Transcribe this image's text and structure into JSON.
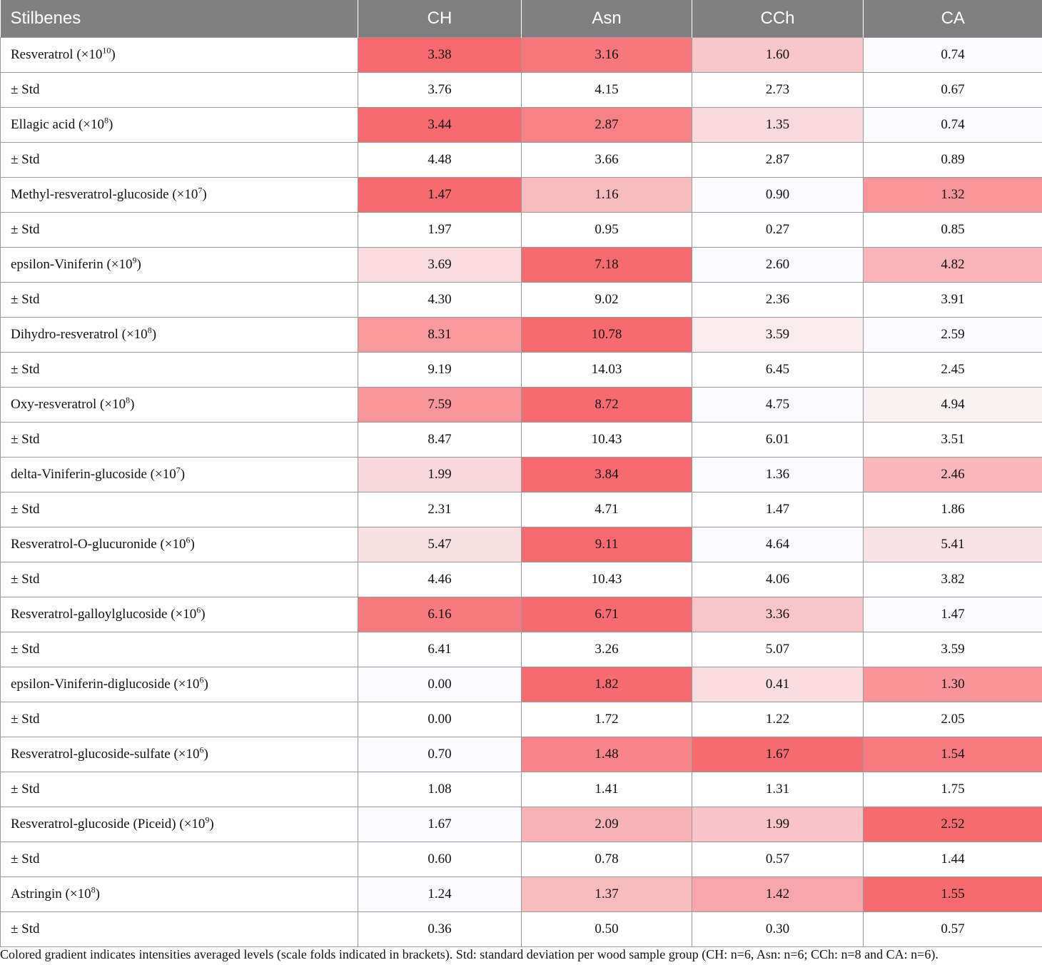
{
  "table": {
    "headers": [
      "Stilbenes",
      "CH",
      "Asn",
      "CCh",
      "CA"
    ],
    "std_label": "± Std",
    "rows": [
      {
        "name": "Resveratrol (×10",
        "name_sup": "10",
        "name_end": ")",
        "values": [
          "3.38",
          "3.16",
          "1.60",
          "0.74"
        ],
        "std": [
          "3.76",
          "4.15",
          "2.73",
          "0.67"
        ],
        "colors": [
          "#f76b70",
          "#f7777c",
          "#f8c7ca",
          "#fafaff"
        ]
      },
      {
        "name": "Ellagic acid (×10",
        "name_sup": "8",
        "name_end": ")",
        "values": [
          "3.44",
          "2.87",
          "1.35",
          "0.74"
        ],
        "std": [
          "4.48",
          "3.66",
          "2.87",
          "0.89"
        ],
        "colors": [
          "#f76b70",
          "#f78286",
          "#f9d9dc",
          "#fafaff"
        ]
      },
      {
        "name": "Methyl-resveratrol-glucoside (×10",
        "name_sup": "7",
        "name_end": ")",
        "values": [
          "1.47",
          "1.16",
          "0.90",
          "1.32"
        ],
        "std": [
          "1.97",
          "0.95",
          "0.27",
          "0.85"
        ],
        "colors": [
          "#f76b70",
          "#f8bcbf",
          "#fafaff",
          "#f8969a"
        ]
      },
      {
        "name": "epsilon-Viniferin (×10",
        "name_sup": "9",
        "name_end": ")",
        "values": [
          "3.69",
          "7.18",
          "2.60",
          "4.82"
        ],
        "std": [
          "4.30",
          "9.02",
          "2.36",
          "3.91"
        ],
        "colors": [
          "#f9dadd",
          "#f76b70",
          "#fafaff",
          "#f8b4b8"
        ]
      },
      {
        "name": "Dihydro-resveratrol (×10",
        "name_sup": "8",
        "name_end": ")",
        "values": [
          "8.31",
          "10.78",
          "3.59",
          "2.59"
        ],
        "std": [
          "9.19",
          "14.03",
          "6.45",
          "2.45"
        ],
        "colors": [
          "#f89a9e",
          "#f76b70",
          "#faecee",
          "#fafaff"
        ]
      },
      {
        "name": "Oxy-resveratrol (×10",
        "name_sup": "8",
        "name_end": ")",
        "values": [
          "7.59",
          "8.72",
          "4.75",
          "4.94"
        ],
        "std": [
          "8.47",
          "10.43",
          "6.01",
          "3.51"
        ],
        "colors": [
          "#f8979b",
          "#f76b70",
          "#fafaff",
          "#faf1f3"
        ]
      },
      {
        "name": "delta-Viniferin-glucoside (×10",
        "name_sup": "7",
        "name_end": ")",
        "values": [
          "1.99",
          "3.84",
          "1.36",
          "2.46"
        ],
        "std": [
          "2.31",
          "4.71",
          "1.47",
          "1.86"
        ],
        "colors": [
          "#f9d8db",
          "#f76b70",
          "#fafaff",
          "#f8b7ba"
        ]
      },
      {
        "name": "Resveratrol-O-glucuronide (×10",
        "name_sup": "6",
        "name_end": ")",
        "values": [
          "5.47",
          "9.11",
          "4.64",
          "5.41"
        ],
        "std": [
          "4.46",
          "10.43",
          "4.06",
          "3.82"
        ],
        "colors": [
          "#f9e0e3",
          "#f76b70",
          "#fafaff",
          "#f9e2e5"
        ]
      },
      {
        "name": "Resveratrol-galloylglucoside (×10",
        "name_sup": "6",
        "name_end": ")",
        "values": [
          "6.16",
          "6.71",
          "3.36",
          "1.47"
        ],
        "std": [
          "6.41",
          "3.26",
          "5.07",
          "3.59"
        ],
        "colors": [
          "#f77a7e",
          "#f76b70",
          "#f8c5c8",
          "#fafaff"
        ]
      },
      {
        "name": "epsilon-Viniferin-diglucoside (×10",
        "name_sup": "6",
        "name_end": ")",
        "values": [
          "0.00",
          "1.82",
          "0.41",
          "1.30"
        ],
        "std": [
          "0.00",
          "1.72",
          "1.22",
          "2.05"
        ],
        "colors": [
          "#fafaff",
          "#f76b70",
          "#f9dcdf",
          "#f8959a"
        ]
      },
      {
        "name": "Resveratrol-glucoside-sulfate (×10",
        "name_sup": "6",
        "name_end": ")",
        "values": [
          "0.70",
          "1.48",
          "1.67",
          "1.54"
        ],
        "std": [
          "1.08",
          "1.41",
          "1.31",
          "1.75"
        ],
        "colors": [
          "#fafaff",
          "#f7858a",
          "#f76b70",
          "#f77c80"
        ]
      },
      {
        "name": "Resveratrol-glucoside (Piceid) (×10",
        "name_sup": "9",
        "name_end": ")",
        "values": [
          "1.67",
          "2.09",
          "1.99",
          "2.52"
        ],
        "std": [
          "0.60",
          "0.78",
          "0.57",
          "1.44"
        ],
        "colors": [
          "#fafaff",
          "#f8b3b7",
          "#f8c4c7",
          "#f76b70"
        ]
      },
      {
        "name": "Astringin (×10",
        "name_sup": "8",
        "name_end": ")",
        "values": [
          "1.24",
          "1.37",
          "1.42",
          "1.55"
        ],
        "std": [
          "0.36",
          "0.50",
          "0.30",
          "0.57"
        ],
        "colors": [
          "#fafaff",
          "#f8bcbf",
          "#f8a6aa",
          "#f76b70"
        ]
      }
    ]
  },
  "caption": "Colored gradient indicates intensities averaged levels (scale folds indicated in brackets). Std: standard deviation per wood sample group (CH: n=6, Asn: n=6; CCh: n=8 and CA: n=6)."
}
